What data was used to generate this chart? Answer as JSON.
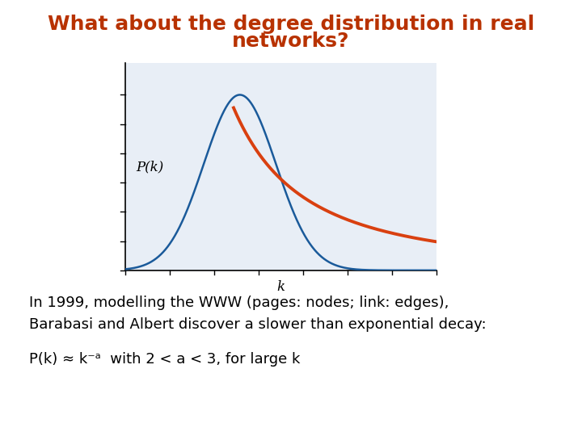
{
  "title_line1": "What about the degree distribution in real",
  "title_line2": "networks?",
  "title_color": "#b83200",
  "title_fontsize": 18,
  "background_color": "#ffffff",
  "plot_bg_color": "#e8eef6",
  "blue_line_color": "#1a5a9a",
  "red_line_color": "#d94010",
  "ylabel": "P(k)",
  "xlabel": "k",
  "body_text_line1": "In 1999, modelling the WWW (pages: nodes; link: edges),",
  "body_text_line2": "Barabasi and Albert discover a slower than exponential decay:",
  "body_text_line3": "P(k) ≈ k⁻ᵃ  with 2 < a < 3, for large k",
  "body_fontsize": 13,
  "label_fontsize": 12,
  "axis_label_fontsize": 12
}
